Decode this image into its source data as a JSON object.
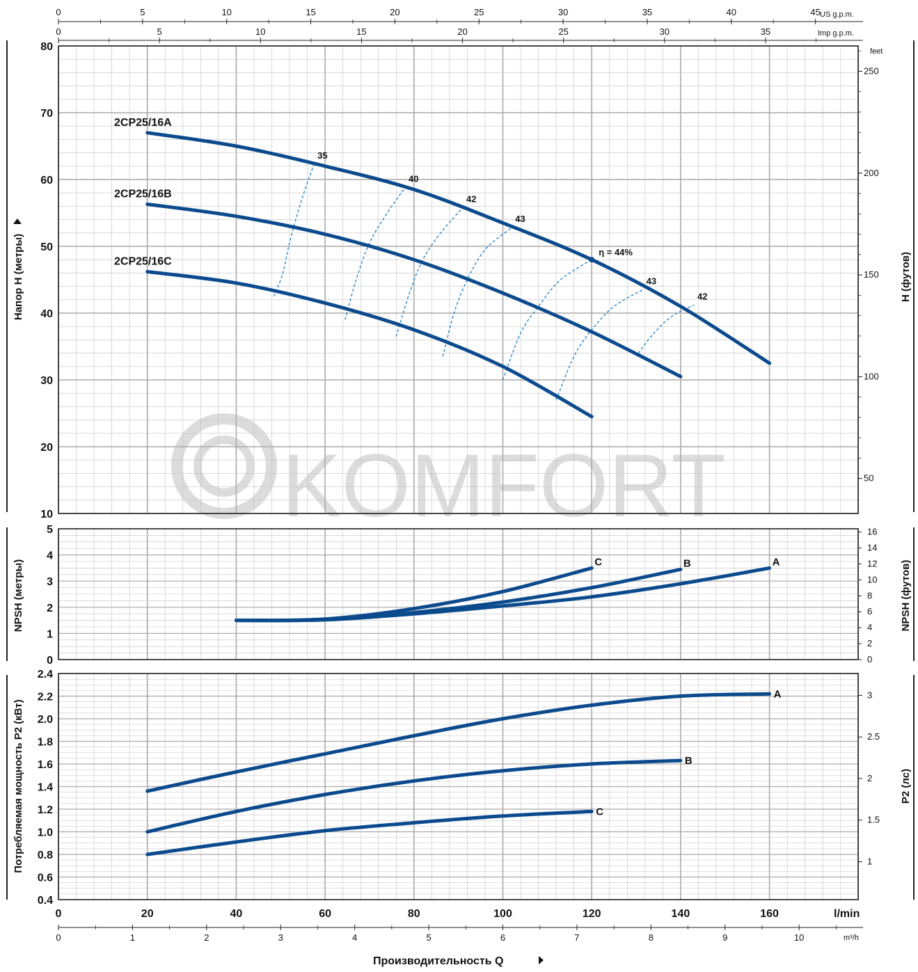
{
  "watermark": "KOMFORT",
  "axes": {
    "us_gpm_label": "US g.p.m.",
    "imp_gpm_label": "Imp g.p.m.",
    "feet_label": "feet",
    "lmin_label": "l/min",
    "m3h_label": "m³/h",
    "q_label": "Производительность Q",
    "h_left_label": "Напор H (метры)",
    "h_right_label": "H (футов)",
    "npsh_left_label": "NPSH (метры)",
    "npsh_right_label": "NPSH (футов)",
    "p2_left_label": "Потребляемая мощность P2 (кВт)",
    "p2_right_label": "P2 (лс)",
    "us_gpm_ticks": [
      "0",
      "5",
      "10",
      "15",
      "20",
      "25",
      "30",
      "35",
      "40",
      "45"
    ],
    "imp_gpm_ticks": [
      "0",
      "5",
      "10",
      "15",
      "20",
      "25",
      "30",
      "35"
    ],
    "lmin_ticks": [
      "0",
      "20",
      "40",
      "60",
      "80",
      "100",
      "120",
      "140",
      "160"
    ],
    "m3h_ticks": [
      "0",
      "1",
      "2",
      "3",
      "4",
      "5",
      "6",
      "7",
      "8",
      "9",
      "10"
    ],
    "h_ticks": [
      "10",
      "20",
      "30",
      "40",
      "50",
      "60",
      "70",
      "80"
    ],
    "feet_ticks": [
      "50",
      "100",
      "150",
      "200",
      "250"
    ],
    "npsh_ticks": [
      "0",
      "1",
      "2",
      "3",
      "4",
      "5"
    ],
    "npsh_ft_ticks": [
      "0",
      "2",
      "4",
      "6",
      "8",
      "10",
      "12",
      "14",
      "16"
    ],
    "p2_ticks": [
      "0.4",
      "0.6",
      "0.8",
      "1.0",
      "1.2",
      "1.4",
      "1.6",
      "1.8",
      "2.0",
      "2.2",
      "2.4"
    ],
    "hp_ticks": [
      "1",
      "1.5",
      "2",
      "2.5",
      "3"
    ]
  },
  "colors": {
    "curve": "#0b4a8c",
    "efficiency": "#2a86c8",
    "grid": "#c2c2c2",
    "frame": "#222222",
    "watermark": "#dcdcdc"
  },
  "chart_data": [
    {
      "type": "line",
      "title": "",
      "xlabel": "Производительность Q",
      "ylabel": "Напор H (метры)",
      "xlim": [
        0,
        180
      ],
      "ylim": [
        10,
        80
      ],
      "series": [
        {
          "name": "2CP25/16A",
          "x": [
            20,
            40,
            60,
            80,
            100,
            120,
            140,
            160
          ],
          "y": [
            67,
            65,
            62,
            58.5,
            53.5,
            48,
            41,
            32.5
          ]
        },
        {
          "name": "2CP25/16B",
          "x": [
            20,
            40,
            60,
            80,
            100,
            120,
            140
          ],
          "y": [
            56.3,
            54.5,
            51.8,
            48,
            43,
            37.2,
            30.5
          ]
        },
        {
          "name": "2CP25/16C",
          "x": [
            20,
            40,
            60,
            80,
            100,
            120
          ],
          "y": [
            46.2,
            44.5,
            41.5,
            37.5,
            32,
            24.5
          ]
        }
      ],
      "efficiency": [
        {
          "label": "35",
          "points": [
            [
              48.5,
              42.5
            ],
            [
              50.5,
              46
            ],
            [
              52,
              50.5
            ],
            [
              54.5,
              56.5
            ],
            [
              57.5,
              62.3
            ]
          ]
        },
        {
          "label": "40",
          "points": [
            [
              64.5,
              39
            ],
            [
              67,
              45
            ],
            [
              70,
              50.5
            ],
            [
              74,
              55
            ],
            [
              78,
              58.8
            ]
          ]
        },
        {
          "label": "42",
          "points": [
            [
              76,
              36.5
            ],
            [
              79,
              43
            ],
            [
              82,
              48
            ],
            [
              86,
              52
            ],
            [
              91,
              55.8
            ]
          ]
        },
        {
          "label": "43",
          "points": [
            [
              86.5,
              33.5
            ],
            [
              89,
              40
            ],
            [
              92,
              45
            ],
            [
              96,
              49.5
            ],
            [
              102,
              52.8
            ]
          ]
        },
        {
          "label": "η = 44%",
          "points": [
            [
              100,
              30
            ],
            [
              104,
              37
            ],
            [
              108,
              41
            ],
            [
              113,
              45
            ],
            [
              120,
              48
            ]
          ]
        },
        {
          "label": "43",
          "points": [
            [
              112,
              27
            ],
            [
              116,
              33.5
            ],
            [
              120,
              37.5
            ],
            [
              125,
              41
            ],
            [
              131.5,
              43.5
            ]
          ]
        },
        {
          "label": "42",
          "points": [
            [
              130.5,
              34
            ],
            [
              134,
              37
            ],
            [
              138,
              39.5
            ],
            [
              143,
              41.2
            ]
          ]
        }
      ]
    },
    {
      "type": "line",
      "xlabel": "Производительность Q",
      "ylabel": "NPSH (метры)",
      "xlim": [
        0,
        180
      ],
      "ylim": [
        0,
        5
      ],
      "series": [
        {
          "name": "A",
          "x": [
            40,
            60,
            80,
            100,
            120,
            140,
            160
          ],
          "y": [
            1.5,
            1.52,
            1.75,
            2.05,
            2.4,
            2.9,
            3.5
          ]
        },
        {
          "name": "B",
          "x": [
            40,
            60,
            80,
            100,
            120,
            140
          ],
          "y": [
            1.5,
            1.52,
            1.8,
            2.2,
            2.75,
            3.45
          ]
        },
        {
          "name": "C",
          "x": [
            40,
            60,
            80,
            100,
            120
          ],
          "y": [
            1.5,
            1.55,
            1.95,
            2.6,
            3.5
          ]
        }
      ]
    },
    {
      "type": "line",
      "xlabel": "Производительность Q",
      "ylabel": "Потребляемая мощность P2 (кВт)",
      "xlim": [
        0,
        180
      ],
      "ylim": [
        0.4,
        2.4
      ],
      "series": [
        {
          "name": "A",
          "x": [
            20,
            40,
            60,
            80,
            100,
            120,
            140,
            160
          ],
          "y": [
            1.36,
            1.53,
            1.69,
            1.85,
            2.0,
            2.12,
            2.2,
            2.22
          ]
        },
        {
          "name": "B",
          "x": [
            20,
            40,
            60,
            80,
            100,
            120,
            140
          ],
          "y": [
            1.0,
            1.18,
            1.33,
            1.45,
            1.54,
            1.6,
            1.63
          ]
        },
        {
          "name": "C",
          "x": [
            20,
            40,
            60,
            80,
            100,
            120
          ],
          "y": [
            0.8,
            0.91,
            1.01,
            1.08,
            1.14,
            1.18
          ]
        }
      ]
    }
  ]
}
